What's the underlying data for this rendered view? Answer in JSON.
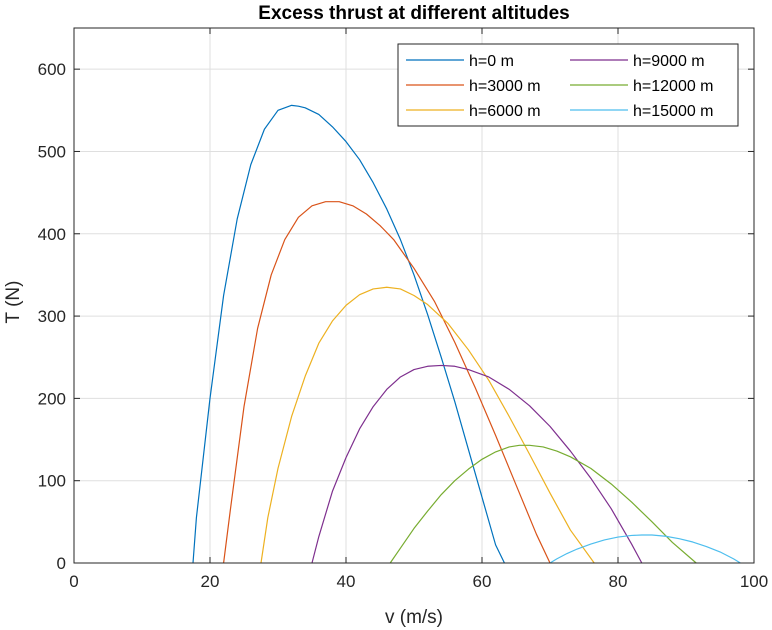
{
  "chart_data": {
    "type": "line",
    "title": "Excess thrust at different altitudes",
    "xlabel": "v (m/s)",
    "ylabel": "T (N)",
    "xlim": [
      0,
      100
    ],
    "ylim": [
      0,
      650
    ],
    "xticks": [
      0,
      20,
      40,
      60,
      80,
      100
    ],
    "yticks": [
      0,
      100,
      200,
      300,
      400,
      500,
      600
    ],
    "grid": true,
    "legend_position": "top-right",
    "legend_columns": 2,
    "series": [
      {
        "name": "h=0 m",
        "color": "#0072BD",
        "x": [
          17.5,
          18,
          20,
          22,
          24,
          26,
          28,
          30,
          32,
          33,
          34,
          36,
          38,
          40,
          42,
          44,
          46,
          48,
          50,
          52,
          54,
          56,
          58,
          60,
          62,
          63.3
        ],
        "y": [
          0,
          55,
          200,
          325,
          418,
          484,
          527,
          550,
          556,
          555,
          553,
          545,
          530,
          512,
          490,
          462,
          430,
          393,
          350,
          302,
          250,
          196,
          138,
          80,
          22,
          0
        ]
      },
      {
        "name": "h=3000 m",
        "color": "#D95319",
        "x": [
          22,
          23,
          25,
          27,
          29,
          31,
          33,
          35,
          37,
          39,
          41,
          43,
          45,
          47,
          50,
          53,
          56,
          59,
          62,
          65,
          68,
          70
        ],
        "y": [
          0,
          65,
          190,
          285,
          350,
          393,
          420,
          434,
          439,
          439,
          434,
          424,
          410,
          393,
          358,
          318,
          268,
          213,
          155,
          95,
          35,
          0
        ]
      },
      {
        "name": "h=6000 m",
        "color": "#EDB120",
        "x": [
          27.5,
          28.5,
          30,
          32,
          34,
          36,
          38,
          40,
          42,
          44,
          46,
          48,
          50,
          52,
          55,
          58,
          61,
          64,
          67,
          70,
          73,
          76.5
        ],
        "y": [
          0,
          55,
          115,
          178,
          227,
          267,
          294,
          313,
          326,
          333,
          335,
          333,
          325,
          314,
          291,
          259,
          222,
          178,
          132,
          85,
          40,
          0
        ]
      },
      {
        "name": "h=9000 m",
        "color": "#7E2F8E",
        "x": [
          35,
          36,
          38,
          40,
          42,
          44,
          46,
          48,
          50,
          52,
          54,
          56,
          58,
          61,
          64,
          67,
          70,
          73,
          76,
          79,
          82,
          83.5
        ],
        "y": [
          0,
          32,
          87,
          128,
          163,
          190,
          211,
          226,
          235,
          239,
          240,
          239,
          235,
          226,
          211,
          191,
          166,
          136,
          103,
          66,
          23,
          0
        ]
      },
      {
        "name": "h=12000 m",
        "color": "#77AC30",
        "x": [
          46.5,
          48,
          50,
          52,
          54,
          56,
          58,
          60,
          62,
          64,
          65.5,
          67,
          69,
          71,
          73,
          76,
          79,
          82,
          85,
          88,
          91.5
        ],
        "y": [
          0,
          18,
          42,
          63,
          83,
          100,
          114,
          126,
          135,
          141,
          143,
          143,
          141,
          136,
          129,
          115,
          96,
          74,
          50,
          25,
          0
        ]
      },
      {
        "name": "h=15000 m",
        "color": "#4DBEEE",
        "x": [
          70,
          71,
          72.5,
          74,
          76,
          78,
          80,
          82,
          83.5,
          85,
          87,
          89,
          91,
          93,
          95,
          97,
          98
        ],
        "y": [
          0,
          5,
          11.5,
          17,
          23,
          28,
          31.5,
          33.5,
          34,
          34,
          32.5,
          29.5,
          25.5,
          20,
          13.5,
          5,
          0
        ]
      }
    ]
  }
}
